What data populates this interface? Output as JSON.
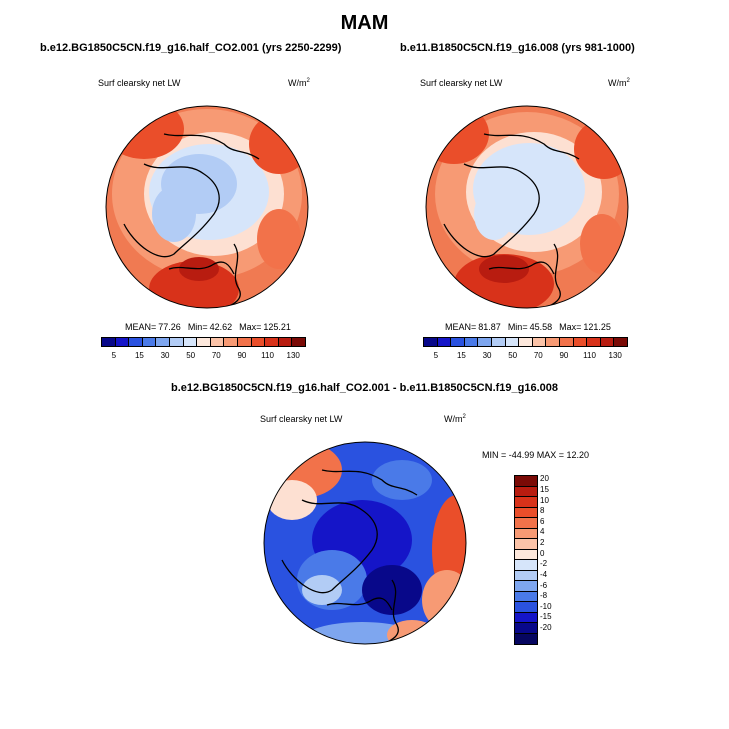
{
  "season": "MAM",
  "panels": [
    {
      "case_title": "b.e12.BG1850C5CN.f19_g16.half_CO2.001 (yrs 2250-2299)",
      "field_label": "Surf clearsky net LW",
      "units": "W/m",
      "units_exp": "2",
      "stats": {
        "mean_label": "MEAN=",
        "mean": "77.26",
        "min_label": "Min=",
        "min": "42.62",
        "max_label": "Max=",
        "max": "125.21"
      }
    },
    {
      "case_title": "b.e11.B1850C5CN.f19_g16.008 (yrs 981-1000)",
      "field_label": "Surf clearsky net LW",
      "units": "W/m",
      "units_exp": "2",
      "stats": {
        "mean_label": "MEAN=",
        "mean": "81.87",
        "min_label": "Min=",
        "min": "45.58",
        "max_label": "Max=",
        "max": "121.25"
      }
    }
  ],
  "abs_colorbar": {
    "ticks": [
      "5",
      "15",
      "30",
      "50",
      "70",
      "90",
      "110",
      "130"
    ],
    "colors": [
      "#08088a",
      "#1515c8",
      "#2a52e0",
      "#4a7ae8",
      "#7ea6ef",
      "#b2ccf5",
      "#d6e5fa",
      "#fde8dc",
      "#fbc3a8",
      "#f79a74",
      "#f2724a",
      "#ea4e2a",
      "#d8321a",
      "#b81c10",
      "#7a0a06"
    ]
  },
  "diff": {
    "title": "b.e12.BG1850C5CN.f19_g16.half_CO2.001 - b.e11.B1850C5CN.f19_g16.008",
    "field_label": "Surf clearsky net LW",
    "units": "W/m",
    "units_exp": "2",
    "minmax": "MIN = -44.99 MAX =  12.20",
    "colorbar_ticks": [
      "20",
      "15",
      "10",
      "8",
      "6",
      "4",
      "2",
      "0",
      "-2",
      "-4",
      "-6",
      "-8",
      "-10",
      "-15",
      "-20"
    ],
    "colorbar_colors": [
      "#7a0a06",
      "#b81c10",
      "#d8321a",
      "#ea4e2a",
      "#f2724a",
      "#f79a74",
      "#fbc3a8",
      "#fde8dc",
      "#d6e5fa",
      "#b2ccf5",
      "#7ea6ef",
      "#4a7ae8",
      "#2a52e0",
      "#1515c8",
      "#08088a",
      "#060660"
    ]
  }
}
